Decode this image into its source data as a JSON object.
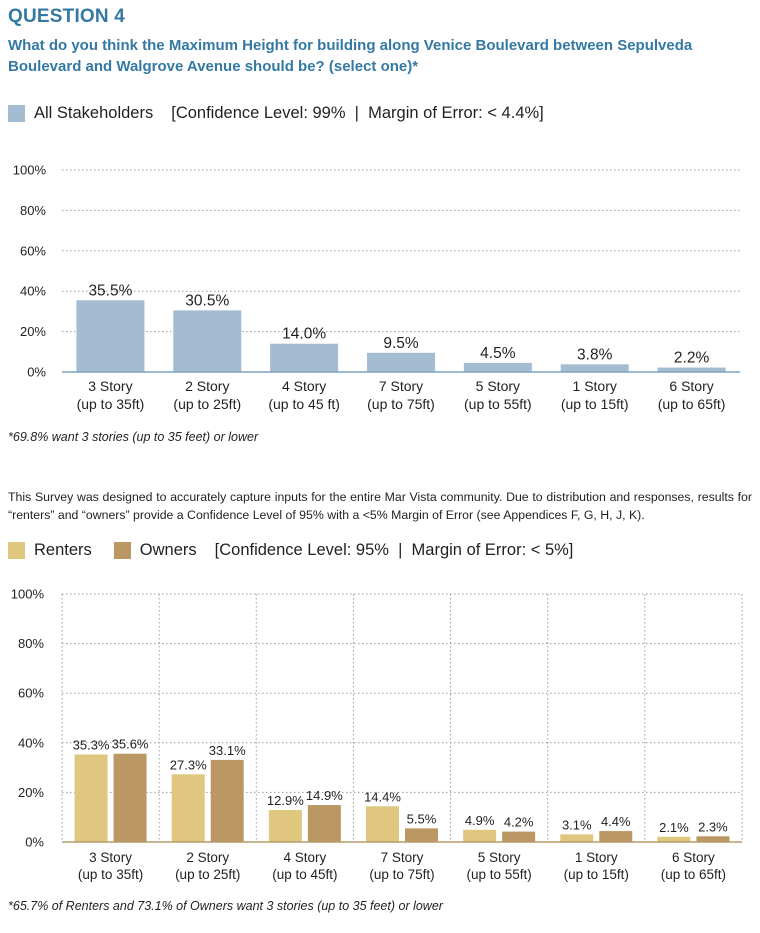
{
  "question": {
    "title": "QUESTION 4",
    "text": "What do you think the Maximum Height for building along Venice Boulevard between Sepulveda Boulevard and Walgrove Avenue should be? (select one)*"
  },
  "legend1": {
    "label": "All Stakeholders",
    "stats": "[Confidence Level: 99%  |  Margin of Error: < 4.4%]"
  },
  "footnote1": "*69.8% want 3 stories (up to 35 feet) or lower",
  "paragraph": "This Survey was designed to accurately capture inputs for the entire Mar Vista community. Due to distribution and responses, results for “renters” and “owners” provide a Confidence Level of 95% with a <5% Margin of Error (see Appendices F, G, H, J, K).",
  "legend2": {
    "renters": "Renters",
    "owners": "Owners",
    "stats": "[Confidence Level: 95%  |  Margin of Error: < 5%]"
  },
  "footnote2": "*65.7% of Renters and 73.1% of Owners want 3 stories (up to 35 feet) or lower",
  "colors": {
    "title": "#3479a3",
    "all": "#a3bcd2",
    "renters": "#e0c77f",
    "owners": "#bb9763",
    "grid": "#9a9a9a"
  },
  "chart_data": [
    {
      "type": "bar",
      "categories": [
        [
          "3 Story",
          "(up to 35ft)"
        ],
        [
          "2 Story",
          "(up to 25ft)"
        ],
        [
          "4 Story",
          "(up to 45 ft)"
        ],
        [
          "7 Story",
          "(up to 75ft)"
        ],
        [
          "5 Story",
          "(up to 55ft)"
        ],
        [
          "1 Story",
          "(up to 15ft)"
        ],
        [
          "6 Story",
          "(up to 65ft)"
        ]
      ],
      "series": [
        {
          "name": "All Stakeholders",
          "values": [
            35.5,
            30.5,
            14.0,
            9.5,
            4.5,
            3.8,
            2.2
          ],
          "labels": [
            "35.5%",
            "30.5%",
            "14.0%",
            "9.5%",
            "4.5%",
            "3.8%",
            "2.2%"
          ]
        }
      ],
      "ylim": [
        0,
        100
      ],
      "yticks": [
        "0%",
        "20%",
        "40%",
        "60%",
        "80%",
        "100%"
      ],
      "grid": "horizontal dotted"
    },
    {
      "type": "bar",
      "categories": [
        [
          "3 Story",
          "(up to 35ft)"
        ],
        [
          "2 Story",
          "(up to 25ft)"
        ],
        [
          "4 Story",
          "(up to 45ft)"
        ],
        [
          "7 Story",
          "(up to 75ft)"
        ],
        [
          "5 Story",
          "(up to 55ft)"
        ],
        [
          "1 Story",
          "(up to 15ft)"
        ],
        [
          "6 Story",
          "(up to 65ft)"
        ]
      ],
      "series": [
        {
          "name": "Renters",
          "values": [
            35.3,
            27.3,
            12.9,
            14.4,
            4.9,
            3.1,
            2.1
          ],
          "labels": [
            "35.3%",
            "27.3%",
            "12.9%",
            "14.4%",
            "4.9%",
            "3.1%",
            "2.1%"
          ]
        },
        {
          "name": "Owners",
          "values": [
            35.6,
            33.1,
            14.9,
            5.5,
            4.2,
            4.4,
            2.3
          ],
          "labels": [
            "35.6%",
            "33.1%",
            "14.9%",
            "5.5%",
            "4.2%",
            "4.4%",
            "2.3%"
          ]
        }
      ],
      "ylim": [
        0,
        100
      ],
      "yticks": [
        "0%",
        "20%",
        "40%",
        "60%",
        "80%",
        "100%"
      ],
      "grid": "horizontal and vertical dotted"
    }
  ]
}
